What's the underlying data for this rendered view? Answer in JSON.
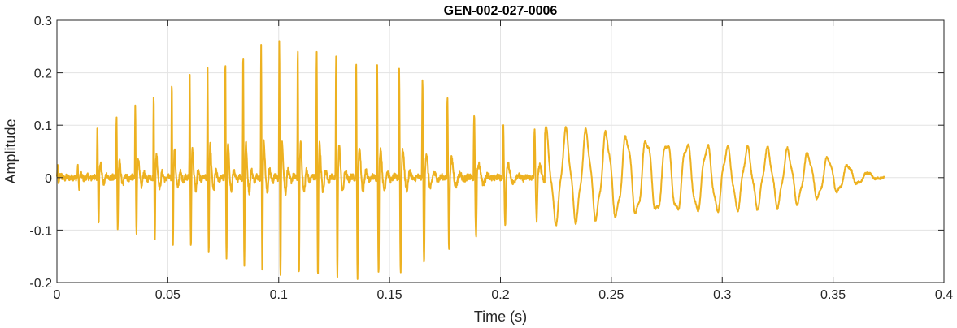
{
  "chart_data": {
    "type": "line",
    "title": "GEN-002-027-0006",
    "xlabel": "Time (s)",
    "ylabel": "Amplitude",
    "xlim": [
      0,
      0.4
    ],
    "ylim": [
      -0.2,
      0.3
    ],
    "xticks": [
      0,
      0.05,
      0.1,
      0.15,
      0.2,
      0.25,
      0.3,
      0.35,
      0.4
    ],
    "xtick_labels": [
      "0",
      "0.05",
      "0.1",
      "0.15",
      "0.2",
      "0.25",
      "0.3",
      "0.35",
      "0.4"
    ],
    "yticks": [
      -0.2,
      -0.1,
      0,
      0.1,
      0.2,
      0.3
    ],
    "ytick_labels": [
      "-0.2",
      "-0.1",
      "0",
      "0.1",
      "0.2",
      "0.3"
    ],
    "grid": true,
    "series": [
      {
        "color": "#EDB120",
        "signal_end": 0.373,
        "envelope": {
          "t": [
            0.0,
            0.012,
            0.016,
            0.03,
            0.05,
            0.07,
            0.1,
            0.13,
            0.16,
            0.19,
            0.2,
            0.22,
            0.25,
            0.3,
            0.33,
            0.35,
            0.365,
            0.373
          ],
          "pos": [
            0.02,
            0.02,
            0.1,
            0.12,
            0.18,
            0.22,
            0.26,
            0.23,
            0.2,
            0.11,
            0.1,
            0.085,
            0.08,
            0.055,
            0.05,
            0.035,
            0.01,
            0.003
          ],
          "neg": [
            -0.01,
            -0.02,
            -0.08,
            -0.1,
            -0.12,
            -0.15,
            -0.19,
            -0.19,
            -0.18,
            -0.11,
            -0.09,
            -0.08,
            -0.07,
            -0.06,
            -0.05,
            -0.03,
            -0.005,
            0.0
          ]
        }
      }
    ]
  }
}
